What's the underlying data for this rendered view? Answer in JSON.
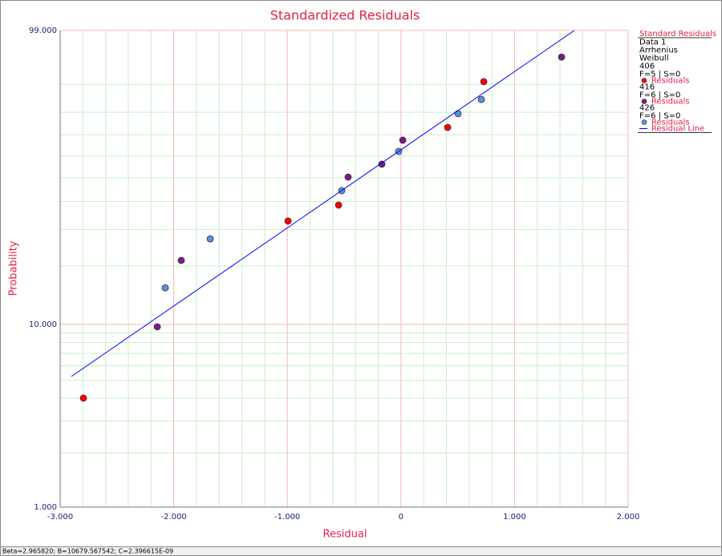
{
  "chart_data": {
    "type": "scatter",
    "title": "Standardized Residuals",
    "x_label": "Residual",
    "y_label": "Probability",
    "y_scale": "weibull",
    "grid": true,
    "xlim": [
      -3,
      2
    ],
    "xticks": [
      {
        "value": -3,
        "label": "-3.000"
      },
      {
        "value": -2,
        "label": "-2.000"
      },
      {
        "value": -1,
        "label": "-1.000"
      },
      0,
      {
        "value": 1,
        "label": "1.000"
      },
      {
        "value": 2,
        "label": "2.000"
      }
    ],
    "x_minor_ticks": [
      -2.8,
      -2.6,
      -2.4,
      -2.2,
      -1.8,
      -1.6,
      -1.4,
      -1.2,
      -0.8,
      -0.6,
      -0.4,
      -0.2,
      0.2,
      0.4,
      0.6,
      0.8,
      1.2,
      1.4,
      1.6,
      1.8
    ],
    "ylim": [
      1,
      99
    ],
    "yticks": [
      {
        "value": 1,
        "label": "1.000"
      },
      {
        "value": 10,
        "label": "10.000"
      },
      {
        "value": 99,
        "label": "99.000"
      }
    ],
    "y_minor_ticks": [
      2,
      3,
      4,
      5,
      6,
      7,
      8,
      9,
      20,
      30,
      40,
      50,
      60,
      70,
      80,
      90
    ],
    "legend_title": "Standard Residuals",
    "legend_lines": [
      "Data 1",
      "Arrhenius",
      "Weibull"
    ],
    "series": [
      {
        "group": "406",
        "info": "F=5 | S=0",
        "name": "Residuals",
        "color": "#ff0000",
        "x": [
          -2.795,
          -0.994,
          -0.549,
          0.411,
          0.729
        ],
        "values": [
          4.0,
          32.8,
          38.6,
          73.4,
          90.8
        ]
      },
      {
        "group": "416",
        "info": "F=6 | S=0",
        "name": "Residuals",
        "color": "#7a1a8a",
        "x": [
          -2.145,
          -1.934,
          -0.465,
          -0.168,
          0.016,
          1.414
        ],
        "values": [
          9.7,
          21.3,
          50.3,
          56.2,
          67.5,
          96.2
        ]
      },
      {
        "group": "426",
        "info": "F=6 | S=0",
        "name": "Residuals",
        "color": "#5b8fe0",
        "x": [
          -2.075,
          -1.679,
          -0.521,
          -0.02,
          0.503,
          0.708
        ],
        "values": [
          15.5,
          27.1,
          44.4,
          62.2,
          79.4,
          85.0
        ]
      },
      {
        "type": "line",
        "name": "Residual Line",
        "color": "#0000ff",
        "x": [
          -2.901,
          1.527
        ],
        "values": [
          5.25,
          99
        ]
      }
    ],
    "footer": "Beta=2.965820; B=10679.567542; C=2.396615E-09"
  }
}
